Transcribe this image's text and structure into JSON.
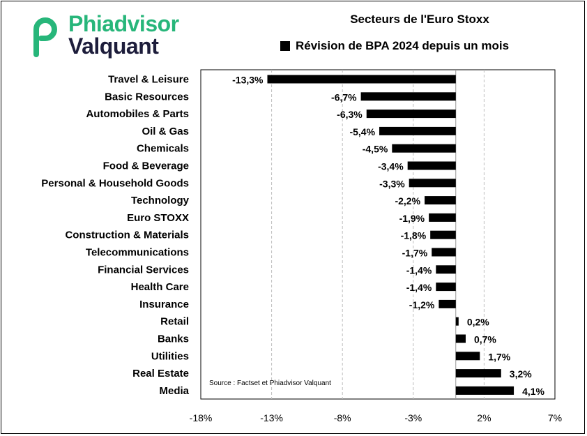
{
  "logo": {
    "line1": "Phiadvisor",
    "line2": "Valquant",
    "color_green": "#27b67a",
    "color_dark": "#1d1d3b"
  },
  "chart_data": {
    "type": "bar",
    "orientation": "horizontal",
    "title": "Secteurs de l'Euro Stoxx",
    "legend": [
      {
        "name": "Révision de BPA 2024 depuis un mois",
        "color": "#000000"
      }
    ],
    "legend_placement": "top",
    "source": "Source : Factset et Phiadvisor Valquant",
    "categories": [
      "Travel & Leisure",
      "Basic Resources",
      "Automobiles & Parts",
      "Oil & Gas",
      "Chemicals",
      "Food & Beverage",
      "Personal & Household Goods",
      "Technology",
      "Euro STOXX",
      "Construction & Materials",
      "Telecommunications",
      "Financial Services",
      "Health Care",
      "Insurance",
      "Retail",
      "Banks",
      "Utilities",
      "Real Estate",
      "Media"
    ],
    "values": [
      -13.3,
      -6.7,
      -6.3,
      -5.4,
      -4.5,
      -3.4,
      -3.3,
      -2.2,
      -1.9,
      -1.8,
      -1.7,
      -1.4,
      -1.4,
      -1.2,
      0.2,
      0.7,
      1.7,
      3.2,
      4.1
    ],
    "value_labels": [
      "-13,3%",
      "-6,7%",
      "-6,3%",
      "-5,4%",
      "-4,5%",
      "-3,4%",
      "-3,3%",
      "-2,2%",
      "-1,9%",
      "-1,8%",
      "-1,7%",
      "-1,4%",
      "-1,4%",
      "-1,2%",
      "0,2%",
      "0,7%",
      "1,7%",
      "3,2%",
      "4,1%"
    ],
    "xlim": [
      -18,
      7
    ],
    "xticks": [
      -18,
      -13,
      -8,
      -3,
      2,
      7
    ],
    "xtick_labels": [
      "-18%",
      "-13%",
      "-8%",
      "-3%",
      "2%",
      "7%"
    ],
    "grid": "vertical dashed",
    "bar_color": "#000000"
  }
}
